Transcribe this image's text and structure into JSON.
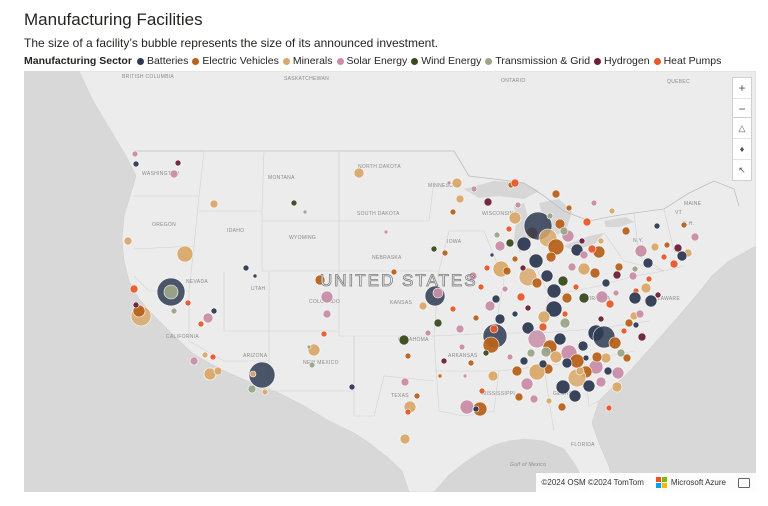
{
  "header": {
    "title": "Manufacturing Facilities",
    "subtitle": "The size of a facility’s bubble represents the size of its announced investment."
  },
  "legend": {
    "title": "Manufacturing Sector",
    "items": [
      {
        "label": "Batteries",
        "color": "#2f3b53"
      },
      {
        "label": "Electric Vehicles",
        "color": "#b8621b"
      },
      {
        "label": "Minerals",
        "color": "#d9a96b"
      },
      {
        "label": "Solar Energy",
        "color": "#c98ea8"
      },
      {
        "label": "Wind Energy",
        "color": "#394a1f"
      },
      {
        "label": "Transmission & Grid",
        "color": "#9ba58a"
      },
      {
        "label": "Hydrogen",
        "color": "#6b1f3a"
      },
      {
        "label": "Heat Pumps",
        "color": "#e8582a"
      }
    ]
  },
  "map": {
    "country_label": "UNITED STATES",
    "water_label": "Gulf of Mexico",
    "labels": [
      {
        "text": "BRITISH COLUMBIA"
      },
      {
        "text": "SASKATCHEWAN"
      },
      {
        "text": "ONTARIO"
      },
      {
        "text": "QUEBEC"
      },
      {
        "text": "WASHINGTON"
      },
      {
        "text": "MONTANA"
      },
      {
        "text": "NORTH DAKOTA"
      },
      {
        "text": "MINNESOTA"
      },
      {
        "text": "OREGON"
      },
      {
        "text": "IDAHO"
      },
      {
        "text": "SOUTH DAKOTA"
      },
      {
        "text": "WISCONSIN"
      },
      {
        "text": "WYOMING"
      },
      {
        "text": "IOWA"
      },
      {
        "text": "NEBRASKA"
      },
      {
        "text": "NEVADA"
      },
      {
        "text": "UTAH"
      },
      {
        "text": "COLORADO"
      },
      {
        "text": "KANSAS"
      },
      {
        "text": "CALIFORNIA"
      },
      {
        "text": "ARIZONA"
      },
      {
        "text": "NEW MEXICO"
      },
      {
        "text": "OKLAHOMA"
      },
      {
        "text": "ARKANSAS"
      },
      {
        "text": "TEXAS"
      },
      {
        "text": "MISSISSIPPI"
      },
      {
        "text": "GEORGIA"
      },
      {
        "text": "FLORIDA"
      },
      {
        "text": "VIRGINIA"
      },
      {
        "text": "N.Y."
      },
      {
        "text": "MAINE"
      },
      {
        "text": "VT"
      },
      {
        "text": "N.H."
      },
      {
        "text": "DELAWARE"
      },
      {
        "text": "NB"
      }
    ],
    "attribution": "©2024 OSM ©2024 TomTom",
    "provider": "Microsoft Azure",
    "controls": [
      {
        "symbol": "+",
        "name": "zoom-in"
      },
      {
        "symbol": "−",
        "name": "zoom-out"
      },
      {
        "symbol": "△",
        "name": "tilt"
      },
      {
        "symbol": "♦",
        "name": "compass"
      },
      {
        "symbol": "↖",
        "name": "select"
      }
    ]
  }
}
